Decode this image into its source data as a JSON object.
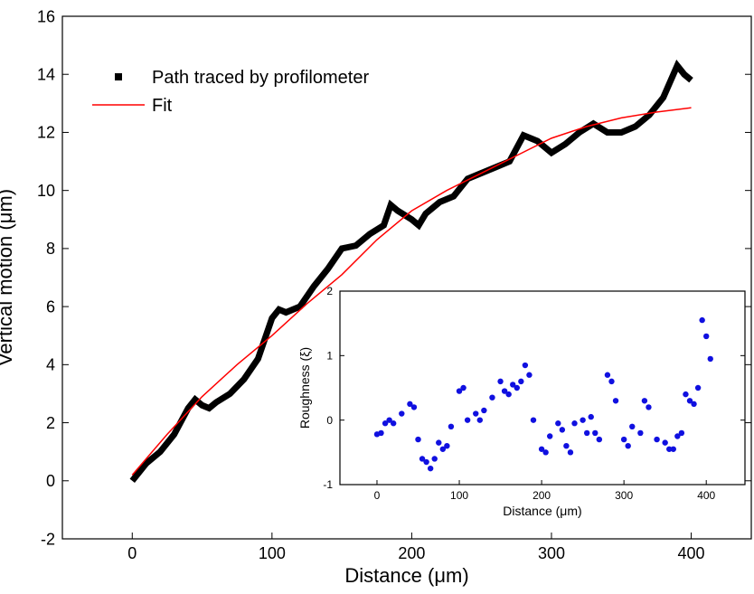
{
  "chart_data": [
    {
      "type": "line",
      "x_label": "Distance (μm)",
      "y_label": "Vertical motion (μm)",
      "xlim": [
        -50,
        443
      ],
      "ylim": [
        -2,
        16
      ],
      "xticks": [
        0,
        100,
        200,
        300,
        400
      ],
      "yticks": [
        -2,
        0,
        2,
        4,
        6,
        8,
        10,
        12,
        14,
        16
      ],
      "legend": "upper-left",
      "series": [
        {
          "name": "Path traced by profilometer",
          "color": "#000000",
          "line_width": 7,
          "x": [
            0,
            10,
            20,
            30,
            40,
            45,
            50,
            55,
            60,
            70,
            80,
            90,
            100,
            105,
            110,
            120,
            130,
            140,
            150,
            160,
            170,
            180,
            185,
            190,
            200,
            205,
            210,
            220,
            230,
            240,
            250,
            260,
            270,
            280,
            290,
            300,
            310,
            320,
            330,
            340,
            350,
            360,
            370,
            380,
            390,
            395,
            400
          ],
          "values": [
            0,
            0.6,
            1.0,
            1.6,
            2.5,
            2.8,
            2.6,
            2.5,
            2.7,
            3.0,
            3.5,
            4.2,
            5.6,
            5.9,
            5.8,
            6.0,
            6.7,
            7.3,
            8.0,
            8.1,
            8.5,
            8.8,
            9.5,
            9.3,
            9.0,
            8.8,
            9.2,
            9.6,
            9.8,
            10.4,
            10.6,
            10.8,
            11.0,
            11.9,
            11.7,
            11.3,
            11.6,
            12.0,
            12.3,
            12.0,
            12.0,
            12.2,
            12.6,
            13.2,
            14.3,
            14.0,
            13.8
          ]
        },
        {
          "name": "Fit",
          "color": "#ff0000",
          "line_width": 1.5,
          "x": [
            0,
            25,
            50,
            75,
            100,
            125,
            150,
            175,
            200,
            225,
            250,
            275,
            300,
            325,
            350,
            375,
            400
          ],
          "values": [
            0.2,
            1.6,
            2.9,
            4.0,
            5.0,
            6.1,
            7.1,
            8.3,
            9.3,
            10.0,
            10.6,
            11.2,
            11.8,
            12.2,
            12.5,
            12.7,
            12.85
          ]
        }
      ]
    },
    {
      "type": "scatter",
      "x_label": "Distance (μm)",
      "y_label": "Roughness (ξ)",
      "xlim": [
        -45,
        447
      ],
      "ylim": [
        -1,
        2
      ],
      "xticks": [
        0,
        100,
        200,
        300,
        400
      ],
      "yticks": [
        -1,
        0,
        1,
        2
      ],
      "series": [
        {
          "color": "#1010e0",
          "x": [
            0,
            5,
            10,
            15,
            20,
            30,
            40,
            45,
            50,
            55,
            60,
            65,
            70,
            75,
            80,
            85,
            90,
            100,
            105,
            110,
            120,
            125,
            130,
            140,
            150,
            155,
            160,
            165,
            170,
            175,
            180,
            185,
            190,
            200,
            205,
            210,
            220,
            225,
            230,
            235,
            240,
            250,
            255,
            260,
            265,
            270,
            280,
            285,
            290,
            300,
            305,
            310,
            320,
            325,
            330,
            340,
            350,
            355,
            360,
            365,
            370,
            375,
            380,
            385,
            390,
            395,
            400,
            405
          ],
          "values": [
            -0.22,
            -0.2,
            -0.05,
            0.0,
            -0.05,
            0.1,
            0.25,
            0.2,
            -0.3,
            -0.6,
            -0.65,
            -0.75,
            -0.6,
            -0.35,
            -0.45,
            -0.4,
            -0.1,
            0.45,
            0.5,
            0.0,
            0.1,
            0.0,
            0.15,
            0.35,
            0.6,
            0.45,
            0.4,
            0.55,
            0.5,
            0.6,
            0.85,
            0.7,
            0.0,
            -0.45,
            -0.5,
            -0.25,
            -0.05,
            -0.15,
            -0.4,
            -0.5,
            -0.05,
            0.0,
            -0.2,
            0.05,
            -0.2,
            -0.3,
            0.7,
            0.6,
            0.3,
            -0.3,
            -0.4,
            -0.1,
            -0.2,
            0.3,
            0.2,
            -0.3,
            -0.35,
            -0.45,
            -0.45,
            -0.25,
            -0.2,
            0.4,
            0.3,
            0.25,
            0.5,
            1.55,
            1.3,
            0.95
          ]
        }
      ]
    }
  ]
}
